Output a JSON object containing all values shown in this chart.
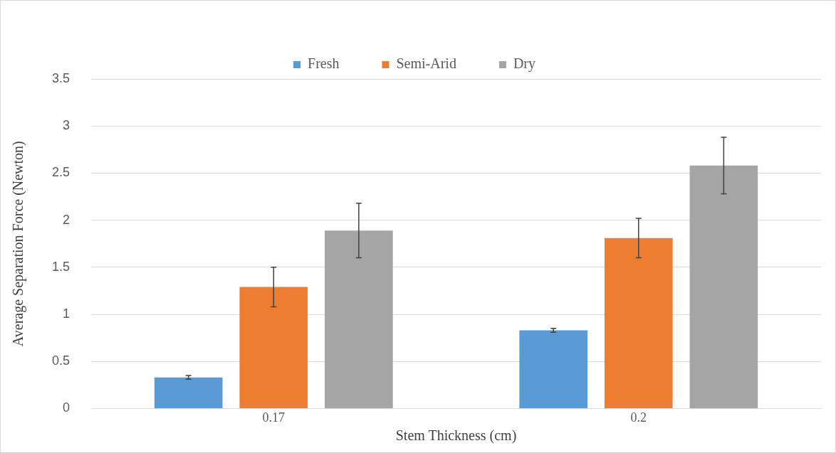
{
  "chart_data": {
    "type": "bar",
    "xlabel": "Stem Thickness (cm)",
    "ylabel": "Average Separation Force (Newton)",
    "categories": [
      "0.17",
      "0.2"
    ],
    "series": [
      {
        "name": "Fresh",
        "color": "#5b9bd5",
        "values": [
          0.33,
          0.83
        ],
        "errors": [
          0.02,
          0.02
        ]
      },
      {
        "name": "Semi-Arid",
        "color": "#ed7d31",
        "values": [
          1.29,
          1.81
        ],
        "errors": [
          0.21,
          0.21
        ]
      },
      {
        "name": "Dry",
        "color": "#a5a5a5",
        "values": [
          1.89,
          2.58
        ],
        "errors": [
          0.29,
          0.3
        ]
      }
    ],
    "ylim": [
      0,
      3.5
    ],
    "yticks": [
      0,
      0.5,
      1,
      1.5,
      2,
      2.5,
      3,
      3.5
    ],
    "grid": "y",
    "legend": "top"
  }
}
